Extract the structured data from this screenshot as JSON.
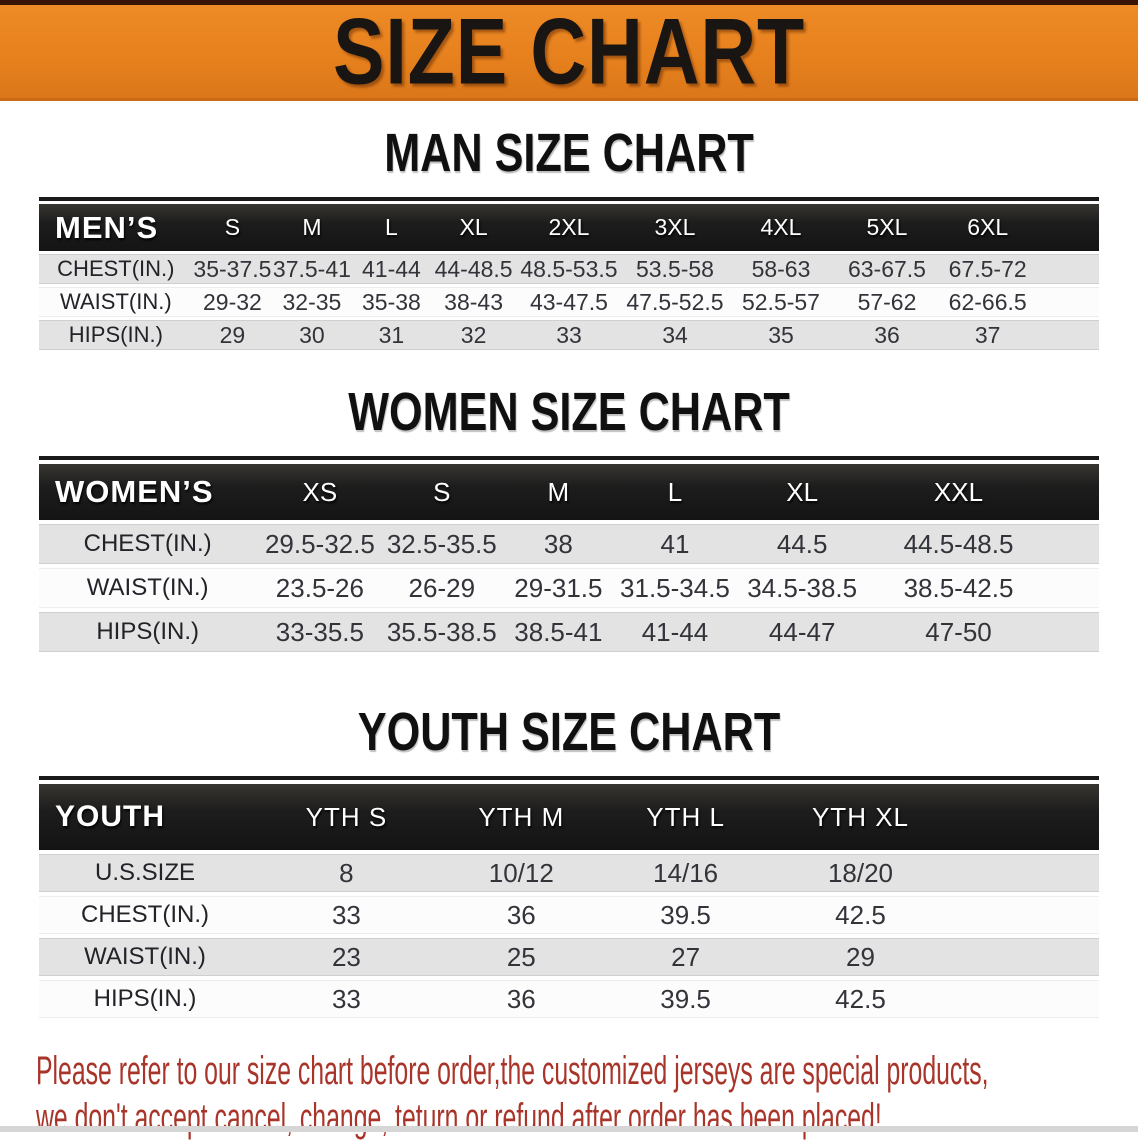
{
  "banner": {
    "title": "SIZE CHART"
  },
  "colors": {
    "banner_orange": "#E6801D",
    "top_edge_dark": "#3A1407",
    "table_header_black": "#1B1B1B",
    "row_gray": "#E3E3E3",
    "row_white": "#FCFCFC",
    "footnote_red": "#A9352A"
  },
  "sections": [
    {
      "heading": "MAN SIZE CHART",
      "table": {
        "corner": "MEN’S",
        "columns": [
          "S",
          "M",
          "L",
          "XL",
          "2XL",
          "3XL",
          "4XL",
          "5XL",
          "6XL"
        ],
        "rows": [
          {
            "label": "CHEST(IN.)",
            "values": [
              "35-37.5",
              "37.5-41",
              "41-44",
              "44-48.5",
              "48.5-53.5",
              "53.5-58",
              "58-63",
              "63-67.5",
              "67.5-72"
            ]
          },
          {
            "label": "WAIST(IN.)",
            "values": [
              "29-32",
              "32-35",
              "35-38",
              "38-43",
              "43-47.5",
              "47.5-52.5",
              "52.5-57",
              "57-62",
              "62-66.5"
            ]
          },
          {
            "label": "HIPS(IN.)",
            "values": [
              "29",
              "30",
              "31",
              "32",
              "33",
              "34",
              "35",
              "36",
              "37"
            ]
          }
        ]
      }
    },
    {
      "heading": "WOMEN SIZE CHART",
      "table": {
        "corner": "WOMEN’S",
        "columns": [
          "XS",
          "S",
          "M",
          "L",
          "XL",
          "XXL"
        ],
        "rows": [
          {
            "label": "CHEST(IN.)",
            "values": [
              "29.5-32.5",
              "32.5-35.5",
              "38",
              "41",
              "44.5",
              "44.5-48.5"
            ]
          },
          {
            "label": "WAIST(IN.)",
            "values": [
              "23.5-26",
              "26-29",
              "29-31.5",
              "31.5-34.5",
              "34.5-38.5",
              "38.5-42.5"
            ]
          },
          {
            "label": "HIPS(IN.)",
            "values": [
              "33-35.5",
              "35.5-38.5",
              "38.5-41",
              "41-44",
              "44-47",
              "47-50"
            ]
          }
        ]
      }
    },
    {
      "heading": "YOUTH SIZE CHART",
      "table": {
        "corner": "YOUTH",
        "columns": [
          "YTH S",
          "YTH M",
          "YTH L",
          "YTH XL"
        ],
        "rows": [
          {
            "label": "U.S.SIZE",
            "values": [
              "8",
              "10/12",
              "14/16",
              "18/20"
            ]
          },
          {
            "label": "CHEST(IN.)",
            "values": [
              "33",
              "36",
              "39.5",
              "42.5"
            ]
          },
          {
            "label": "WAIST(IN.)",
            "values": [
              "23",
              "25",
              "27",
              "29"
            ]
          },
          {
            "label": "HIPS(IN.)",
            "values": [
              "33",
              "36",
              "39.5",
              "42.5"
            ]
          }
        ]
      }
    }
  ],
  "footnote": {
    "lines": [
      "Please refer to our size chart before order,the customized jerseys are special products,",
      "we don't accept cancel, change, teturn or refund after order has been placed!"
    ]
  }
}
